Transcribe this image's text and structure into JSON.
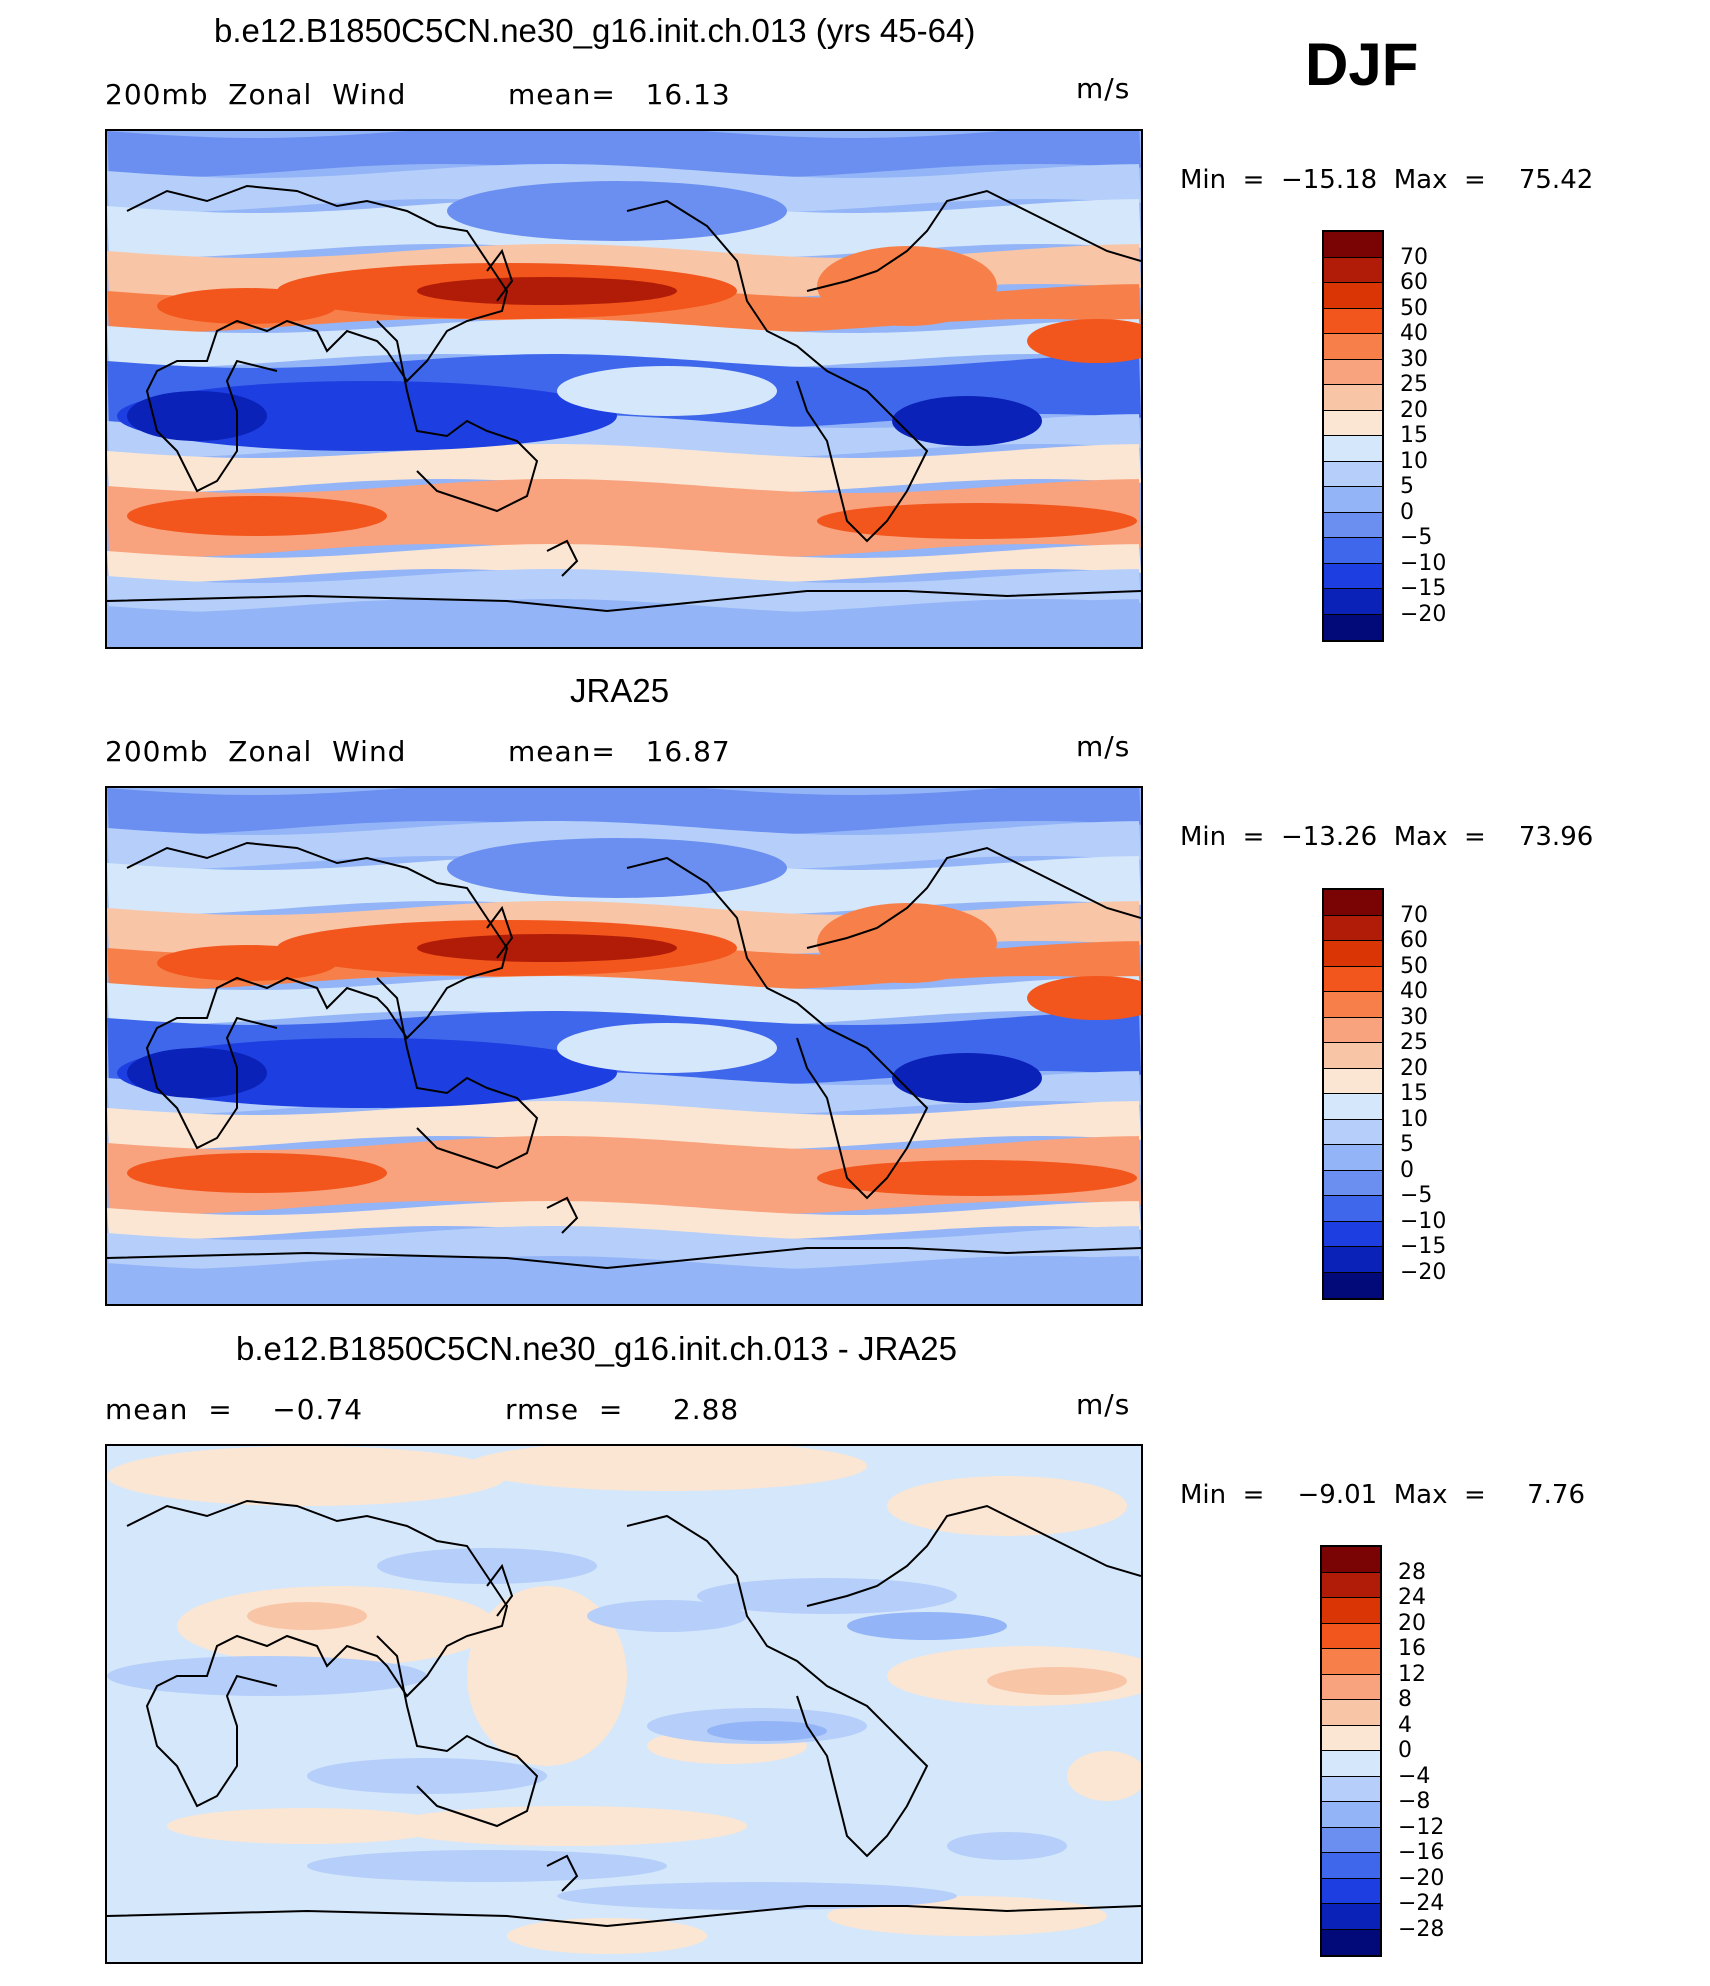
{
  "season": "DJF",
  "panels": [
    {
      "id": "model",
      "title": "b.e12.B1850C5CN.ne30_g16.init.ch.013 (yrs 45-64)",
      "left_label": "200mb  Zonal  Wind",
      "center_label": "mean=   16.13",
      "units": "m/s",
      "min_label": "Min  =  −15.18  Max  =    75.42",
      "colorbar_labels": [
        "70",
        "60",
        "50",
        "40",
        "30",
        "25",
        "20",
        "15",
        "10",
        "5",
        "0",
        "−5",
        "−10",
        "−15",
        "−20"
      ]
    },
    {
      "id": "obs",
      "title": "JRA25",
      "left_label": "200mb  Zonal  Wind",
      "center_label": "mean=   16.87",
      "units": "m/s",
      "min_label": "Min  =  −13.26  Max  =    73.96",
      "colorbar_labels": [
        "70",
        "60",
        "50",
        "40",
        "30",
        "25",
        "20",
        "15",
        "10",
        "5",
        "0",
        "−5",
        "−10",
        "−15",
        "−20"
      ]
    },
    {
      "id": "diff",
      "title": "b.e12.B1850C5CN.ne30_g16.init.ch.013 - JRA25",
      "left_label": "mean  =    −0.74",
      "center_label": "rmse  =     2.88",
      "units": "m/s",
      "min_label": "Min  =    −9.01  Max  =     7.76",
      "colorbar_labels": [
        "28",
        "24",
        "20",
        "16",
        "12",
        "8",
        "4",
        "0",
        "−4",
        "−8",
        "−12",
        "−16",
        "−20",
        "−24",
        "−28"
      ]
    }
  ],
  "colors": {
    "wind_scale": [
      "#7a0403",
      "#b01c07",
      "#d93505",
      "#f2561c",
      "#f7804a",
      "#f8a27e",
      "#f9c5a7",
      "#fbe6d3",
      "#d5e7fa",
      "#b5cffa",
      "#93b4f7",
      "#6b8ff0",
      "#3f67ec",
      "#1d3ee0",
      "#0a22b8",
      "#020a7a"
    ],
    "diff_scale": [
      "#7a0403",
      "#b01c07",
      "#d93505",
      "#f2561c",
      "#f7804a",
      "#f8a27e",
      "#f9c5a7",
      "#fbe6d3",
      "#d5e7fa",
      "#b5cffa",
      "#93b4f7",
      "#6b8ff0",
      "#3f67ec",
      "#1d3ee0",
      "#0a22b8",
      "#020a7a"
    ],
    "coastline": "#000000",
    "frame": "#000000"
  }
}
